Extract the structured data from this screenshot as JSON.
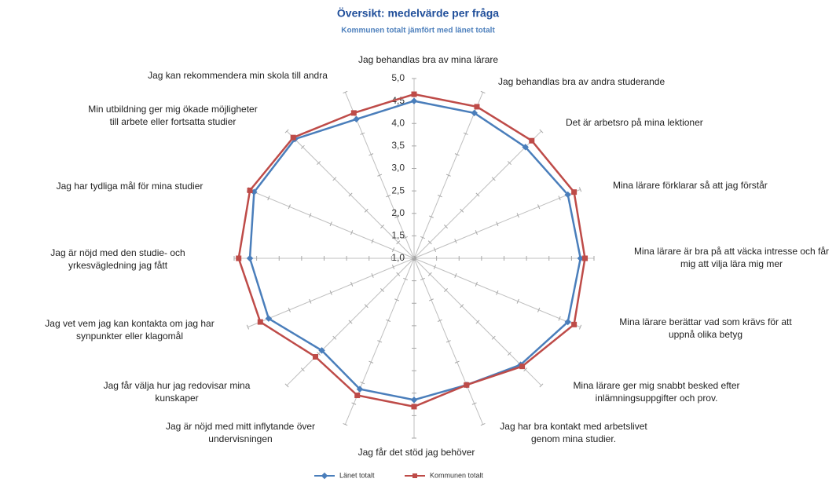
{
  "chart_data": {
    "type": "radar",
    "title": "Översikt: medelvärde per fråga",
    "subtitle": "Kommunen totalt jämfört med länet totalt",
    "categories": [
      "Jag behandlas bra av mina lärare",
      "Jag behandlas bra av andra studerande",
      "Det är arbetsro på mina lektioner",
      "Mina lärare förklarar så att jag förstår",
      "Mina lärare är bra på att väcka intresse och får mig att vilja lära mig mer",
      "Mina lärare berättar vad som krävs för att uppnå olika betyg",
      "Mina lärare ger mig snabbt besked efter inlämningsuppgifter och prov.",
      "Jag har bra kontakt med arbetslivet genom mina studier.",
      "Jag får det stöd jag behöver",
      "Jag är nöjd med mitt inflytande över undervisningen",
      "Jag får välja hur jag redovisar mina kunskaper",
      "Jag vet vem jag kan kontakta om jag har synpunkter eller klagomål",
      "Jag är nöjd med den studie- och yrkesvägledning jag fått",
      "Jag har tydliga mål för mina studier",
      "Min utbildning ger mig ökade möjligheter till arbete eller fortsatta studier",
      "Jag kan rekommendera min skola till andra"
    ],
    "series": [
      {
        "name": "Länet totalt",
        "color": "#4a7ebb",
        "values": [
          4.5,
          4.5,
          4.5,
          4.7,
          4.7,
          4.7,
          4.35,
          4.05,
          4.15,
          4.15,
          3.9,
          4.5,
          4.65,
          4.85,
          4.75,
          4.35
        ]
      },
      {
        "name": "Kommunen totalt",
        "color": "#be4b48",
        "values": [
          4.65,
          4.65,
          4.7,
          4.85,
          4.8,
          4.85,
          4.4,
          4.05,
          4.3,
          4.3,
          4.1,
          4.7,
          4.9,
          4.95,
          4.8,
          4.5
        ]
      }
    ],
    "ylim": [
      1,
      5
    ],
    "yticks": [
      {
        "value": 1,
        "label": "1,0"
      },
      {
        "value": 1.5,
        "label": "1,5"
      },
      {
        "value": 2,
        "label": "2,0"
      },
      {
        "value": 2.5,
        "label": "2,5"
      },
      {
        "value": 3,
        "label": "3,0"
      },
      {
        "value": 3.5,
        "label": "3,5"
      },
      {
        "value": 4,
        "label": "4,0"
      },
      {
        "value": 4.5,
        "label": "4,5"
      },
      {
        "value": 5,
        "label": "5,0"
      }
    ],
    "legend": "bottom"
  }
}
